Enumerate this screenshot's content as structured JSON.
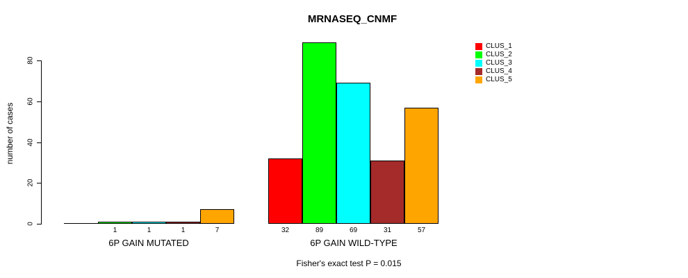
{
  "chart_data": {
    "type": "bar",
    "title": "MRNASEQ_CNMF",
    "xlabel": "",
    "ylabel": "number of cases",
    "ylim": [
      0,
      89
    ],
    "yticks": [
      0,
      20,
      40,
      60,
      80
    ],
    "grid": false,
    "legend_position": "top-right",
    "background": "#FFFFFF",
    "axis_color": "#000000",
    "text_color": "#000000",
    "categories": [
      "6P GAIN MUTATED",
      "6P GAIN WILD-TYPE"
    ],
    "series": [
      {
        "name": "CLUS_1",
        "color": "#FF0000",
        "values": [
          0,
          32
        ]
      },
      {
        "name": "CLUS_2",
        "color": "#00FF00",
        "values": [
          1,
          89
        ]
      },
      {
        "name": "CLUS_3",
        "color": "#00FFFF",
        "values": [
          1,
          69
        ]
      },
      {
        "name": "CLUS_4",
        "color": "#A52A2A",
        "values": [
          1,
          31
        ]
      },
      {
        "name": "CLUS_5",
        "color": "#FFA500",
        "values": [
          7,
          57
        ]
      }
    ],
    "bar_labels": [
      [
        "",
        "1",
        "1",
        "1",
        "7"
      ],
      [
        "32",
        "89",
        "69",
        "31",
        "57"
      ]
    ],
    "caption": "Fisher's exact test P = 0.015"
  }
}
